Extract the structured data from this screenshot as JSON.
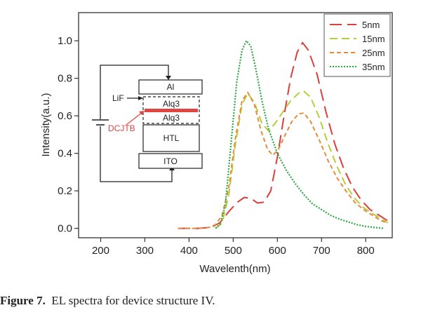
{
  "caption": {
    "label": "Figure 7.",
    "text": "EL spectra for device structure IV."
  },
  "chart_data": {
    "type": "line",
    "title": "",
    "xlabel": "Wavelenth(nm)",
    "ylabel": "Intensity(a.u.)",
    "xlim": [
      150,
      860
    ],
    "ylim": [
      -0.05,
      1.15
    ],
    "xticks": [
      200,
      300,
      400,
      500,
      600,
      700,
      800
    ],
    "yticks": [
      0.0,
      0.2,
      0.4,
      0.6,
      0.8,
      1.0
    ],
    "xtick_labels": [
      "200",
      "300",
      "400",
      "500",
      "600",
      "700",
      "800"
    ],
    "ytick_labels": [
      "0.0",
      "0.2",
      "0.4",
      "0.6",
      "0.8",
      "1.0"
    ],
    "grid": false,
    "legend_position": "top-right",
    "series": [
      {
        "name": "5nm",
        "color": "#d9403a",
        "dash": "long-dash",
        "points": [
          [
            375,
            0.0
          ],
          [
            420,
            0.0
          ],
          [
            450,
            0.005
          ],
          [
            470,
            0.03
          ],
          [
            490,
            0.09
          ],
          [
            510,
            0.14
          ],
          [
            525,
            0.165
          ],
          [
            540,
            0.16
          ],
          [
            555,
            0.135
          ],
          [
            570,
            0.14
          ],
          [
            585,
            0.2
          ],
          [
            600,
            0.38
          ],
          [
            615,
            0.6
          ],
          [
            630,
            0.8
          ],
          [
            645,
            0.94
          ],
          [
            657,
            0.99
          ],
          [
            670,
            0.95
          ],
          [
            690,
            0.82
          ],
          [
            710,
            0.62
          ],
          [
            730,
            0.45
          ],
          [
            750,
            0.32
          ],
          [
            770,
            0.22
          ],
          [
            790,
            0.15
          ],
          [
            810,
            0.1
          ],
          [
            830,
            0.07
          ],
          [
            850,
            0.04
          ]
        ]
      },
      {
        "name": "15nm",
        "color": "#b8cc3a",
        "dash": "dash",
        "points": [
          [
            460,
            0.0
          ],
          [
            475,
            0.03
          ],
          [
            490,
            0.18
          ],
          [
            505,
            0.45
          ],
          [
            520,
            0.66
          ],
          [
            533,
            0.72
          ],
          [
            548,
            0.67
          ],
          [
            565,
            0.56
          ],
          [
            580,
            0.52
          ],
          [
            595,
            0.56
          ],
          [
            612,
            0.62
          ],
          [
            630,
            0.68
          ],
          [
            648,
            0.72
          ],
          [
            660,
            0.73
          ],
          [
            675,
            0.7
          ],
          [
            695,
            0.59
          ],
          [
            715,
            0.45
          ],
          [
            735,
            0.33
          ],
          [
            755,
            0.23
          ],
          [
            775,
            0.16
          ],
          [
            795,
            0.11
          ],
          [
            815,
            0.08
          ],
          [
            835,
            0.05
          ],
          [
            850,
            0.03
          ]
        ]
      },
      {
        "name": "25nm",
        "color": "#e88a3c",
        "dash": "short-dash",
        "points": [
          [
            375,
            0.0
          ],
          [
            420,
            0.0
          ],
          [
            445,
            0.005
          ],
          [
            460,
            0.02
          ],
          [
            475,
            0.07
          ],
          [
            490,
            0.22
          ],
          [
            505,
            0.48
          ],
          [
            520,
            0.68
          ],
          [
            533,
            0.725
          ],
          [
            548,
            0.66
          ],
          [
            563,
            0.52
          ],
          [
            578,
            0.42
          ],
          [
            590,
            0.39
          ],
          [
            602,
            0.42
          ],
          [
            618,
            0.5
          ],
          [
            633,
            0.57
          ],
          [
            648,
            0.61
          ],
          [
            660,
            0.615
          ],
          [
            675,
            0.57
          ],
          [
            695,
            0.47
          ],
          [
            715,
            0.36
          ],
          [
            735,
            0.27
          ],
          [
            755,
            0.2
          ],
          [
            775,
            0.14
          ],
          [
            795,
            0.1
          ],
          [
            815,
            0.07
          ],
          [
            835,
            0.04
          ],
          [
            850,
            0.03
          ]
        ]
      },
      {
        "name": "35nm",
        "color": "#2ea843",
        "dash": "dot",
        "points": [
          [
            460,
            0.0
          ],
          [
            470,
            0.02
          ],
          [
            482,
            0.12
          ],
          [
            495,
            0.45
          ],
          [
            508,
            0.78
          ],
          [
            520,
            0.95
          ],
          [
            530,
            1.0
          ],
          [
            540,
            0.97
          ],
          [
            552,
            0.84
          ],
          [
            565,
            0.68
          ],
          [
            580,
            0.53
          ],
          [
            600,
            0.4
          ],
          [
            620,
            0.31
          ],
          [
            640,
            0.24
          ],
          [
            660,
            0.18
          ],
          [
            680,
            0.13
          ],
          [
            700,
            0.1
          ],
          [
            720,
            0.07
          ],
          [
            740,
            0.05
          ],
          [
            760,
            0.035
          ],
          [
            780,
            0.02
          ],
          [
            800,
            0.01
          ],
          [
            820,
            0.005
          ],
          [
            840,
            0.0
          ]
        ]
      }
    ],
    "inset": {
      "layers": {
        "top": "Al",
        "alq_top": "Alq3",
        "alq_bottom": "Alq3",
        "htl": "HTL",
        "bottom": "ITO"
      },
      "annotations": {
        "lif": "LiF",
        "dcjtb": "DCJTB"
      },
      "dcjtb_color": "#e0453f"
    }
  }
}
